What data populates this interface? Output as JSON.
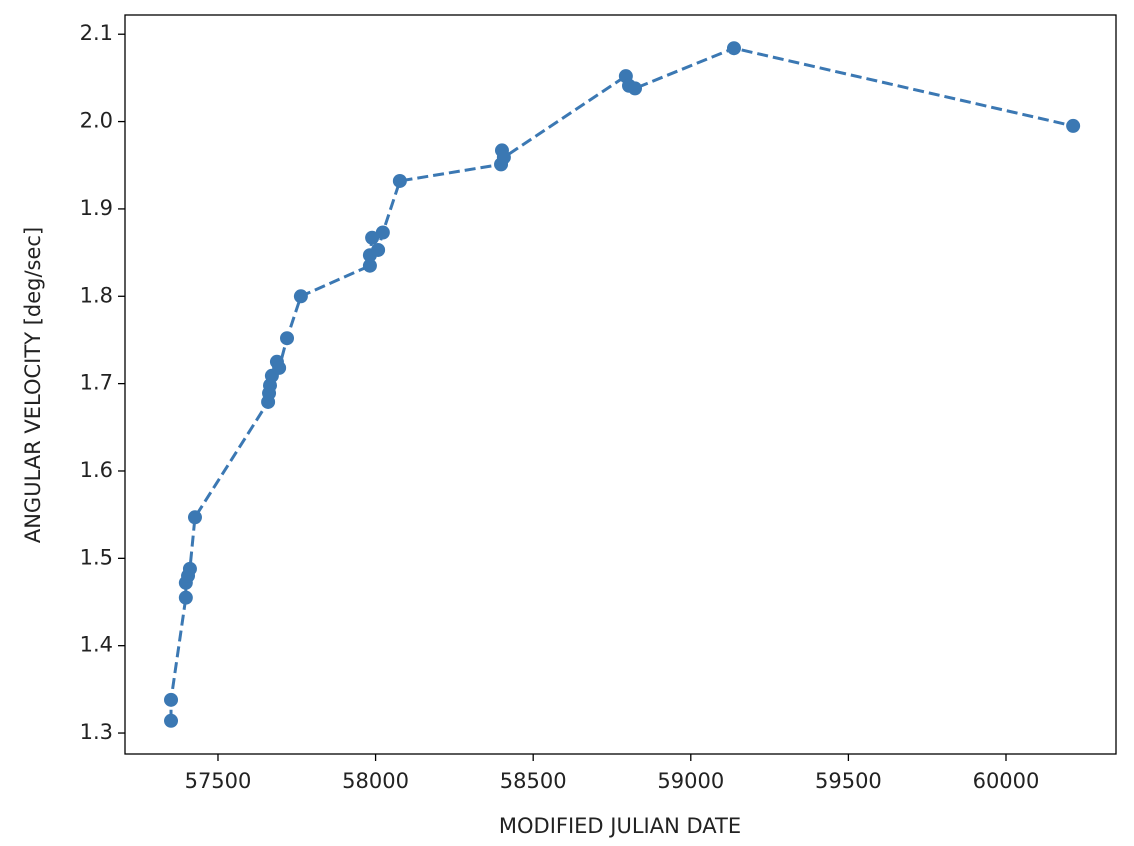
{
  "chart_data": {
    "type": "line",
    "xlabel": "MODIFIED JULIAN DATE",
    "ylabel": "ANGULAR VELOCITY [deg/sec]",
    "x": [
      57351,
      57351,
      57398,
      57398,
      57405,
      57411,
      57427,
      57659,
      57662,
      57665,
      57671,
      57687,
      57694,
      57719,
      57763,
      57982,
      57982,
      57989,
      58008,
      58023,
      58077,
      58398,
      58401,
      58407,
      58794,
      58804,
      58823,
      59137,
      60213
    ],
    "series": [
      {
        "color": "#3b78b3",
        "linestyle": "dashed",
        "marker": "circle",
        "values": [
          1.314,
          1.338,
          1.455,
          1.472,
          1.48,
          1.488,
          1.547,
          1.679,
          1.689,
          1.698,
          1.709,
          1.725,
          1.718,
          1.752,
          1.8,
          1.835,
          1.847,
          1.867,
          1.853,
          1.873,
          1.932,
          1.951,
          1.967,
          1.959,
          2.052,
          2.041,
          2.038,
          2.084,
          1.995
        ]
      }
    ],
    "xlim": [
      57205,
      60349
    ],
    "ylim": [
      1.276,
      2.122
    ],
    "xticks": [
      57500,
      58000,
      58500,
      59000,
      59500,
      60000
    ],
    "yticks": [
      1.3,
      1.4,
      1.5,
      1.6,
      1.7,
      1.8,
      1.9,
      {
        "value": 2,
        "label": "2.0"
      },
      2.1
    ],
    "grid": false
  }
}
